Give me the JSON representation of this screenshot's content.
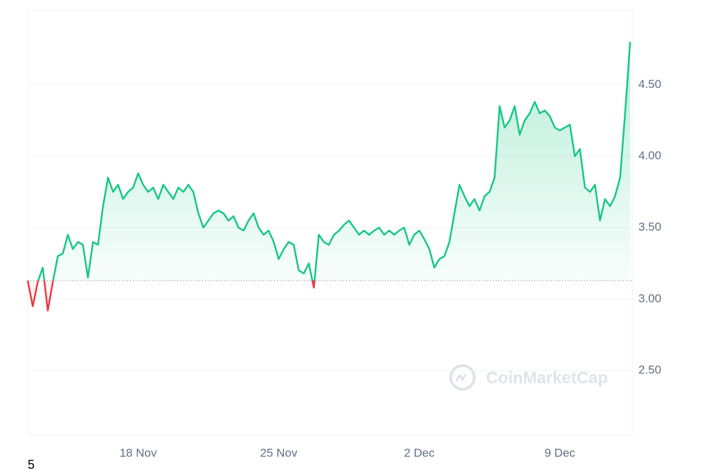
{
  "chart_data": {
    "type": "baseline-line",
    "categories": [
      null,
      null,
      null,
      null,
      null,
      null,
      null,
      null,
      null,
      null,
      null,
      null,
      null,
      null,
      null,
      null,
      null,
      null,
      null,
      null,
      null,
      null,
      "18 Nov",
      null,
      null,
      null,
      null,
      null,
      null,
      null,
      null,
      null,
      null,
      null,
      null,
      null,
      null,
      null,
      null,
      null,
      null,
      null,
      null,
      null,
      null,
      null,
      null,
      null,
      null,
      null,
      "25 Nov",
      null,
      null,
      null,
      null,
      null,
      null,
      null,
      null,
      null,
      null,
      null,
      null,
      null,
      null,
      null,
      null,
      null,
      null,
      null,
      null,
      null,
      null,
      null,
      null,
      null,
      null,
      null,
      "2 Dec",
      null,
      null,
      null,
      null,
      null,
      null,
      null,
      null,
      null,
      null,
      null,
      null,
      null,
      null,
      null,
      null,
      null,
      null,
      null,
      null,
      null,
      null,
      null,
      null,
      null,
      null,
      null,
      "9 Dec",
      null,
      null,
      null,
      null,
      null,
      null,
      null,
      null,
      null,
      null,
      null,
      null,
      null,
      null
    ],
    "values": [
      3.13,
      2.95,
      3.12,
      3.22,
      2.92,
      3.12,
      3.3,
      3.32,
      3.45,
      3.35,
      3.4,
      3.38,
      3.15,
      3.4,
      3.38,
      3.65,
      3.85,
      3.75,
      3.8,
      3.7,
      3.75,
      3.78,
      3.88,
      3.8,
      3.75,
      3.78,
      3.7,
      3.8,
      3.75,
      3.7,
      3.78,
      3.75,
      3.8,
      3.75,
      3.6,
      3.5,
      3.55,
      3.6,
      3.62,
      3.6,
      3.55,
      3.58,
      3.5,
      3.48,
      3.55,
      3.6,
      3.5,
      3.45,
      3.48,
      3.4,
      3.28,
      3.35,
      3.4,
      3.38,
      3.2,
      3.18,
      3.25,
      3.08,
      3.45,
      3.4,
      3.38,
      3.45,
      3.48,
      3.52,
      3.55,
      3.5,
      3.45,
      3.48,
      3.45,
      3.48,
      3.5,
      3.45,
      3.48,
      3.45,
      3.48,
      3.5,
      3.38,
      3.45,
      3.48,
      3.42,
      3.35,
      3.22,
      3.28,
      3.3,
      3.4,
      3.6,
      3.8,
      3.72,
      3.65,
      3.7,
      3.62,
      3.72,
      3.75,
      3.85,
      4.35,
      4.2,
      4.25,
      4.35,
      4.15,
      4.25,
      4.3,
      4.38,
      4.3,
      4.32,
      4.28,
      4.2,
      4.18,
      4.2,
      4.22,
      4.0,
      4.05,
      3.78,
      3.75,
      3.8,
      3.55,
      3.7,
      3.65,
      3.72,
      3.85,
      4.3,
      4.8
    ],
    "baseline": 3.13,
    "color_up": "#16c784",
    "color_down": "#ea3943",
    "ylim": [
      2.05,
      5.02
    ],
    "yticks": [
      {
        "value": 2.5,
        "label": "2.50"
      },
      {
        "value": 3,
        "label": "3.00"
      },
      {
        "value": 3.5,
        "label": "3.50"
      },
      {
        "value": 4,
        "label": "4.00"
      },
      {
        "value": 4.5,
        "label": "4.50"
      }
    ],
    "grid": true,
    "watermark": "CoinMarketCap",
    "footnote": "5"
  }
}
